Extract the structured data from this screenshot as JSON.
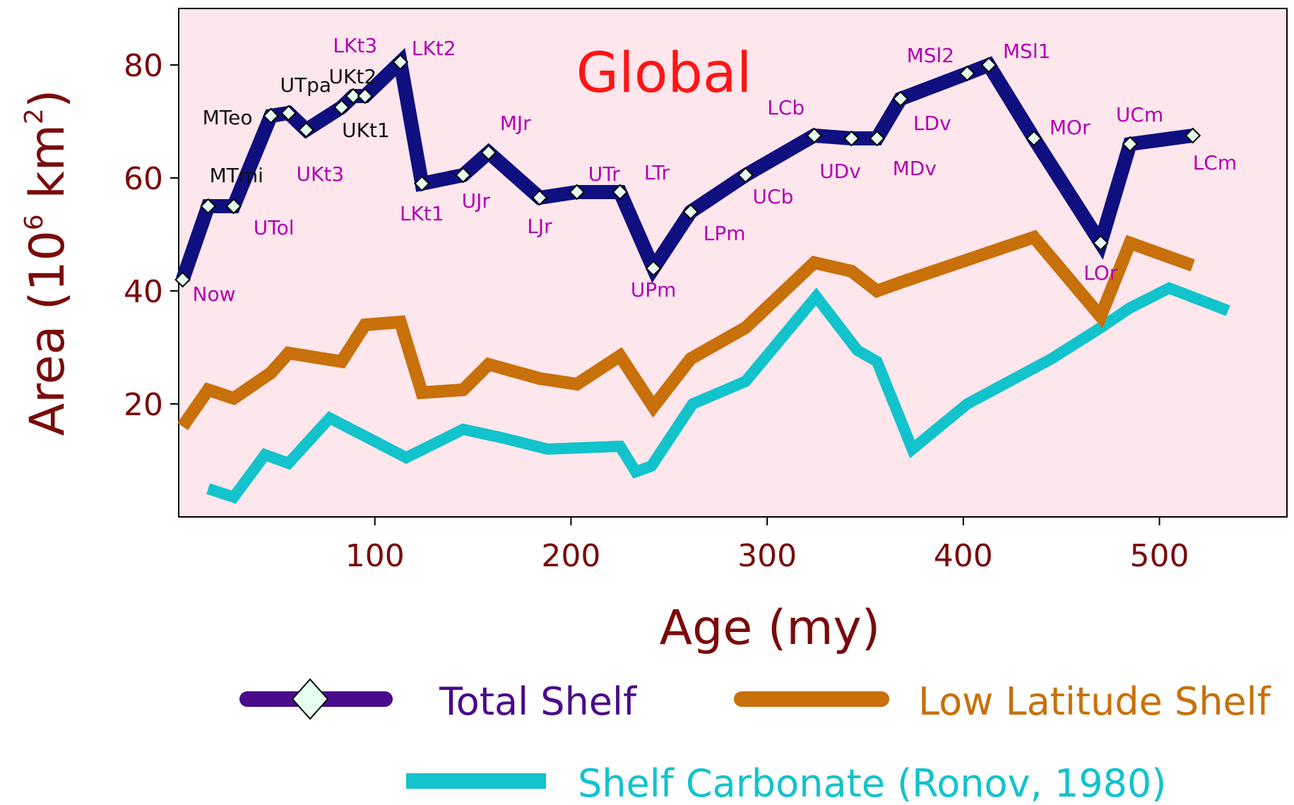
{
  "chart_data": {
    "type": "line",
    "title": "Global",
    "xlabel": "Age (my)",
    "ylabel": "Area (10",
    "ylabel_exp1": "6",
    "ylabel_unit": " km",
    "ylabel_exp2": "2",
    "ylabel_close": ")",
    "xlim": [
      0,
      565
    ],
    "ylim": [
      0,
      90
    ],
    "x_ticks": [
      100,
      200,
      300,
      400,
      500
    ],
    "y_ticks": [
      20,
      40,
      60,
      80
    ],
    "background": "#fde6ec",
    "series": [
      {
        "name": "Total Shelf",
        "color": "#0f0f80",
        "legend_color": "#4a0b8a",
        "marker": "diamond",
        "x": [
          2,
          15,
          28,
          47,
          56,
          65,
          83,
          89,
          95,
          113,
          124,
          145,
          158,
          184,
          203,
          225,
          242,
          261,
          289,
          324,
          343,
          356,
          368,
          402,
          413,
          436,
          470,
          485,
          517
        ],
        "y": [
          42,
          55,
          55,
          71,
          71.5,
          68.5,
          72.5,
          74.5,
          74.5,
          80.5,
          59,
          60.5,
          64.5,
          56.5,
          57.5,
          57.5,
          44,
          54,
          60.5,
          67.5,
          67,
          67,
          74,
          78.5,
          80,
          67,
          48.5,
          66,
          67.5
        ]
      },
      {
        "name": "Low Latitude Shelf",
        "color": "#c8700a",
        "x": [
          2,
          15,
          28,
          47,
          56,
          83,
          95,
          113,
          124,
          145,
          158,
          184,
          203,
          225,
          242,
          261,
          289,
          324,
          343,
          356,
          368,
          402,
          436,
          470,
          485,
          517
        ],
        "y": [
          16,
          22.5,
          21,
          25.5,
          29,
          27.5,
          34,
          34.5,
          22,
          22.5,
          27,
          24.5,
          23.5,
          28.5,
          19.5,
          28,
          33.5,
          45,
          43.5,
          40,
          41.5,
          45.5,
          49.5,
          35.5,
          48.5,
          44.5
        ]
      },
      {
        "name": "Shelf Carbonate (Ronov, 1980)",
        "color": "#12c3cc",
        "x": [
          15,
          28,
          44,
          56,
          77,
          116,
          145,
          165,
          188,
          225,
          233,
          241,
          262,
          289,
          325,
          346,
          356,
          374,
          402,
          445,
          470,
          485,
          505,
          535
        ],
        "y": [
          5,
          3.5,
          11,
          9.5,
          17.5,
          10.5,
          15.5,
          14,
          12,
          12.5,
          8,
          9,
          20,
          24,
          39,
          29.5,
          27.5,
          12,
          20,
          28,
          33.5,
          37,
          40.5,
          36.5
        ]
      }
    ],
    "point_labels": [
      {
        "text": "Now",
        "x": 2,
        "y": 42,
        "color": "#b200b2"
      },
      {
        "text": "MTmi",
        "x": 15,
        "y": 55,
        "color": "#111111"
      },
      {
        "text": "UTol",
        "x": 28,
        "y": 55,
        "color": "#b200b2"
      },
      {
        "text": "MTeo",
        "x": 47,
        "y": 71,
        "color": "#111111"
      },
      {
        "text": "UTpa",
        "x": 56,
        "y": 71.5,
        "color": "#111111"
      },
      {
        "text": "UKt3",
        "x": 65,
        "y": 68.5,
        "color": "#b200b2"
      },
      {
        "text": "UKt2",
        "x": 83,
        "y": 72.5,
        "color": "#111111"
      },
      {
        "text": "UKt1",
        "x": 89,
        "y": 74.5,
        "color": "#111111"
      },
      {
        "text": "LKt3",
        "x": 95,
        "y": 74.5,
        "color": "#b200b2"
      },
      {
        "text": "LKt2",
        "x": 113,
        "y": 80.5,
        "color": "#b200b2"
      },
      {
        "text": "LKt1",
        "x": 124,
        "y": 59,
        "color": "#b200b2"
      },
      {
        "text": "UJr",
        "x": 145,
        "y": 60.5,
        "color": "#b200b2"
      },
      {
        "text": "MJr",
        "x": 158,
        "y": 64.5,
        "color": "#b200b2"
      },
      {
        "text": "LJr",
        "x": 184,
        "y": 56.5,
        "color": "#b200b2"
      },
      {
        "text": "UTr",
        "x": 203,
        "y": 57.5,
        "color": "#b200b2"
      },
      {
        "text": "LTr",
        "x": 225,
        "y": 57.5,
        "color": "#b200b2"
      },
      {
        "text": "UPm",
        "x": 242,
        "y": 44,
        "color": "#b200b2"
      },
      {
        "text": "LPm",
        "x": 261,
        "y": 54,
        "color": "#b200b2"
      },
      {
        "text": "UCb",
        "x": 289,
        "y": 60.5,
        "color": "#b200b2"
      },
      {
        "text": "LCb",
        "x": 324,
        "y": 67.5,
        "color": "#b200b2"
      },
      {
        "text": "UDv",
        "x": 343,
        "y": 67,
        "color": "#b200b2"
      },
      {
        "text": "MDv",
        "x": 356,
        "y": 67,
        "color": "#b200b2"
      },
      {
        "text": "LDv",
        "x": 368,
        "y": 74,
        "color": "#b200b2"
      },
      {
        "text": "MSl2",
        "x": 402,
        "y": 78.5,
        "color": "#b200b2"
      },
      {
        "text": "MSl1",
        "x": 413,
        "y": 80,
        "color": "#b200b2"
      },
      {
        "text": "MOr",
        "x": 436,
        "y": 67,
        "color": "#b200b2"
      },
      {
        "text": "LOr",
        "x": 470,
        "y": 48.5,
        "color": "#b200b2"
      },
      {
        "text": "UCm",
        "x": 485,
        "y": 66,
        "color": "#b200b2"
      },
      {
        "text": "LCm",
        "x": 517,
        "y": 67.5,
        "color": "#b200b2"
      }
    ],
    "legend_placement": "bottom",
    "grid": false
  }
}
